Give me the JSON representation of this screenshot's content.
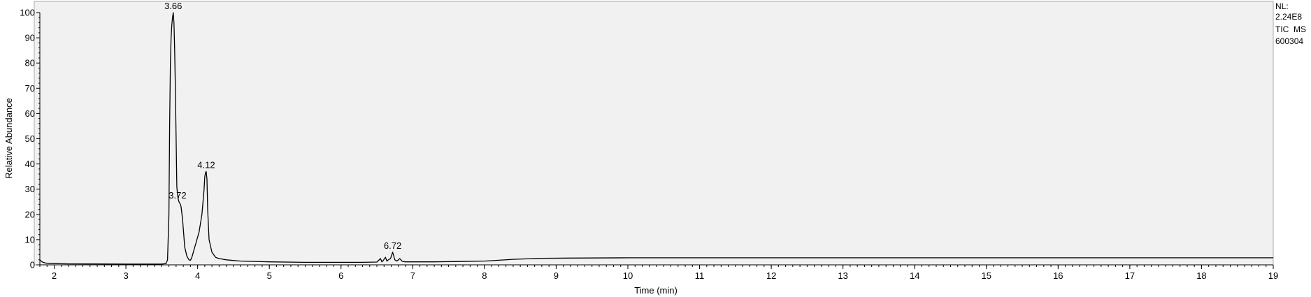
{
  "chart_data": {
    "type": "line",
    "title": "",
    "xlabel": "Time (min)",
    "ylabel": "Relative Abundance",
    "xlim": [
      1.8,
      19.0
    ],
    "ylim": [
      0,
      100
    ],
    "x_ticks": [
      "2",
      "3",
      "4",
      "5",
      "6",
      "7",
      "8",
      "9",
      "10",
      "11",
      "12",
      "13",
      "14",
      "15",
      "16",
      "17",
      "18",
      "19"
    ],
    "y_ticks": [
      "0",
      "10",
      "20",
      "30",
      "40",
      "50",
      "60",
      "70",
      "80",
      "90",
      "100"
    ],
    "grid": false,
    "plot_background": "#f1f1f1",
    "line_color": "#000000",
    "info": [
      "NL:",
      "2.24E8",
      "TIC  MS",
      "600304"
    ],
    "peak_labels": [
      {
        "text": "3.66",
        "x": 3.66,
        "y": 100
      },
      {
        "text": "3.72",
        "x": 3.72,
        "y": 25
      },
      {
        "text": "4.12",
        "x": 4.12,
        "y": 37
      },
      {
        "text": "6.72",
        "x": 6.72,
        "y": 5
      }
    ],
    "series": [
      {
        "x": [
          1.8,
          1.83,
          1.87,
          1.9,
          2.0,
          2.2,
          2.5,
          3.0,
          3.3,
          3.5,
          3.56,
          3.58,
          3.6,
          3.61,
          3.62,
          3.63,
          3.64,
          3.65,
          3.66,
          3.67,
          3.68,
          3.69,
          3.7,
          3.705,
          3.71,
          3.72,
          3.73,
          3.74,
          3.75,
          3.76,
          3.77,
          3.79,
          3.82,
          3.85,
          3.88,
          3.9,
          3.92,
          3.95,
          3.98,
          4.02,
          4.06,
          4.09,
          4.1,
          4.11,
          4.12,
          4.13,
          4.14,
          4.16,
          4.2,
          4.25,
          4.3,
          4.4,
          4.6,
          5.0,
          5.5,
          6.0,
          6.3,
          6.5,
          6.55,
          6.57,
          6.59,
          6.62,
          6.64,
          6.66,
          6.69,
          6.72,
          6.75,
          6.78,
          6.82,
          6.85,
          6.87,
          6.9,
          7.0,
          7.3,
          7.6,
          8.0,
          8.4,
          8.8,
          9.2,
          10.0,
          11.0,
          13.0,
          15.0,
          17.0,
          19.0
        ],
        "y": [
          2,
          1.2,
          0.8,
          0.6,
          0.5,
          0.4,
          0.35,
          0.3,
          0.3,
          0.3,
          0.5,
          2,
          20,
          55,
          80,
          90,
          95,
          98,
          100,
          96,
          85,
          70,
          50,
          40,
          31,
          28,
          26,
          25,
          24.5,
          24,
          23,
          18,
          7,
          3.5,
          2,
          1.8,
          3,
          6,
          9,
          13,
          20,
          30,
          35,
          36.5,
          37,
          34,
          22,
          10,
          5,
          3,
          2.5,
          2,
          1.5,
          1.2,
          1.0,
          1.0,
          1.0,
          1.1,
          2.5,
          1.2,
          1.8,
          3,
          1.5,
          2,
          2.5,
          5,
          2,
          1.5,
          2.5,
          1.5,
          1.3,
          1.2,
          1.2,
          1.2,
          1.3,
          1.5,
          2.2,
          2.6,
          2.7,
          2.8,
          2.8,
          2.8,
          2.8,
          2.8,
          2.8
        ]
      }
    ]
  }
}
